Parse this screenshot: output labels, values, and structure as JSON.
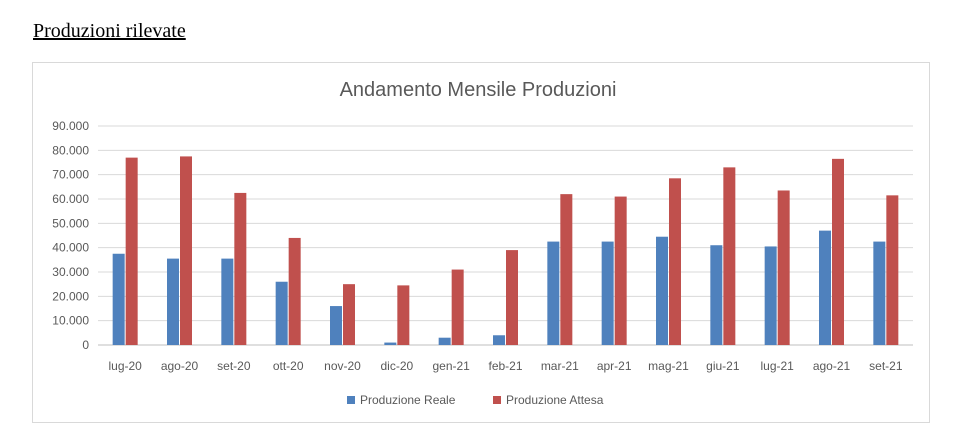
{
  "page_heading": "Produzioni rilevate",
  "chart_data": {
    "type": "bar",
    "title": "Andamento Mensile Produzioni",
    "categories": [
      "lug-20",
      "ago-20",
      "set-20",
      "ott-20",
      "nov-20",
      "dic-20",
      "gen-21",
      "feb-21",
      "mar-21",
      "apr-21",
      "mag-21",
      "giu-21",
      "lug-21",
      "ago-21",
      "set-21"
    ],
    "series": [
      {
        "name": "Produzione Reale",
        "color": "#4f81bd",
        "values": [
          37500,
          35500,
          35500,
          26000,
          16000,
          1000,
          3000,
          4000,
          42500,
          42500,
          44500,
          41000,
          40500,
          47000,
          42500
        ]
      },
      {
        "name": "Produzione Attesa",
        "color": "#c0504d",
        "values": [
          77000,
          77500,
          62500,
          44000,
          25000,
          24500,
          31000,
          39000,
          62000,
          61000,
          68500,
          73000,
          63500,
          76500,
          61500
        ]
      }
    ],
    "ylim": [
      0,
      90000
    ],
    "yticks": [
      "0",
      "10.000",
      "20.000",
      "30.000",
      "40.000",
      "50.000",
      "60.000",
      "70.000",
      "80.000",
      "90.000"
    ],
    "grid": true,
    "legend_position": "bottom"
  }
}
